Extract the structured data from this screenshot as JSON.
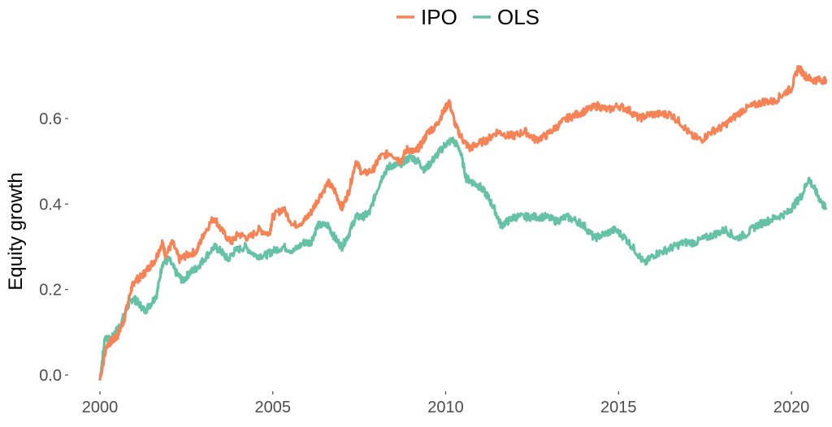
{
  "chart_data": {
    "type": "line",
    "title": "",
    "xlabel": "",
    "ylabel": "Equity growth",
    "xlim": [
      2000,
      2021.1
    ],
    "ylim": [
      -0.02,
      0.76
    ],
    "x_ticks": [
      2000,
      2005,
      2010,
      2015,
      2020
    ],
    "y_ticks": [
      0.0,
      0.2,
      0.4,
      0.6
    ],
    "y_tick_labels": [
      "0.0",
      "0.2",
      "0.4",
      "0.6"
    ],
    "grid": false,
    "legend_position": "top-center",
    "series": [
      {
        "name": "IPO",
        "color": "#F58355",
        "x": [
          2000.0,
          2000.2,
          2000.35,
          2000.5,
          2000.7,
          2000.9,
          2001.0,
          2001.2,
          2001.4,
          2001.6,
          2001.8,
          2001.9,
          2002.1,
          2002.3,
          2002.5,
          2002.8,
          2003.0,
          2003.3,
          2003.5,
          2003.8,
          2004.0,
          2004.3,
          2004.6,
          2004.9,
          2005.0,
          2005.3,
          2005.6,
          2005.9,
          2006.1,
          2006.3,
          2006.6,
          2006.8,
          2007.0,
          2007.2,
          2007.4,
          2007.6,
          2007.9,
          2008.1,
          2008.4,
          2008.7,
          2008.9,
          2009.1,
          2009.3,
          2009.5,
          2009.7,
          2009.9,
          2010.1,
          2010.3,
          2010.5,
          2010.7,
          2010.9,
          2011.2,
          2011.5,
          2011.8,
          2012.0,
          2012.3,
          2012.6,
          2012.9,
          2013.2,
          2013.5,
          2013.8,
          2014.1,
          2014.4,
          2014.7,
          2015.0,
          2015.3,
          2015.6,
          2015.9,
          2016.2,
          2016.5,
          2016.8,
          2017.1,
          2017.4,
          2017.7,
          2018.0,
          2018.3,
          2018.6,
          2018.9,
          2019.2,
          2019.5,
          2019.8,
          2020.0,
          2020.2,
          2020.4,
          2020.6,
          2020.8,
          2021.0
        ],
        "values": [
          -0.01,
          0.07,
          0.08,
          0.09,
          0.13,
          0.2,
          0.22,
          0.23,
          0.25,
          0.27,
          0.31,
          0.28,
          0.31,
          0.27,
          0.28,
          0.29,
          0.33,
          0.37,
          0.34,
          0.31,
          0.33,
          0.32,
          0.34,
          0.33,
          0.37,
          0.39,
          0.35,
          0.36,
          0.38,
          0.41,
          0.45,
          0.43,
          0.39,
          0.43,
          0.5,
          0.47,
          0.48,
          0.51,
          0.52,
          0.5,
          0.53,
          0.52,
          0.54,
          0.57,
          0.58,
          0.61,
          0.64,
          0.58,
          0.55,
          0.53,
          0.54,
          0.55,
          0.57,
          0.56,
          0.56,
          0.57,
          0.55,
          0.56,
          0.58,
          0.6,
          0.61,
          0.62,
          0.63,
          0.62,
          0.63,
          0.62,
          0.6,
          0.61,
          0.61,
          0.61,
          0.59,
          0.56,
          0.55,
          0.57,
          0.58,
          0.6,
          0.62,
          0.63,
          0.64,
          0.64,
          0.66,
          0.67,
          0.72,
          0.7,
          0.69,
          0.69,
          0.69
        ]
      },
      {
        "name": "OLS",
        "color": "#66C2A5",
        "x": [
          2000.0,
          2000.15,
          2000.3,
          2000.45,
          2000.6,
          2000.8,
          2000.95,
          2001.1,
          2001.3,
          2001.5,
          2001.65,
          2001.8,
          2002.0,
          2002.2,
          2002.4,
          2002.6,
          2002.8,
          2003.0,
          2003.3,
          2003.5,
          2003.7,
          2003.9,
          2004.2,
          2004.5,
          2004.8,
          2005.0,
          2005.3,
          2005.6,
          2005.9,
          2006.1,
          2006.3,
          2006.6,
          2006.8,
          2007.0,
          2007.2,
          2007.4,
          2007.6,
          2007.8,
          2008.0,
          2008.2,
          2008.4,
          2008.6,
          2008.8,
          2009.0,
          2009.2,
          2009.4,
          2009.6,
          2009.8,
          2010.0,
          2010.2,
          2010.4,
          2010.6,
          2010.8,
          2011.0,
          2011.2,
          2011.4,
          2011.6,
          2011.8,
          2012.0,
          2012.3,
          2012.6,
          2012.9,
          2013.2,
          2013.5,
          2013.8,
          2014.0,
          2014.3,
          2014.6,
          2014.9,
          2015.2,
          2015.5,
          2015.75,
          2016.0,
          2016.3,
          2016.6,
          2016.9,
          2017.2,
          2017.5,
          2017.8,
          2018.1,
          2018.4,
          2018.7,
          2019.0,
          2019.3,
          2019.6,
          2019.9,
          2020.1,
          2020.3,
          2020.5,
          2020.7,
          2020.9,
          2021.0
        ],
        "values": [
          -0.01,
          0.09,
          0.08,
          0.1,
          0.12,
          0.16,
          0.18,
          0.17,
          0.15,
          0.17,
          0.19,
          0.26,
          0.27,
          0.24,
          0.22,
          0.24,
          0.25,
          0.27,
          0.3,
          0.29,
          0.27,
          0.29,
          0.3,
          0.28,
          0.28,
          0.29,
          0.3,
          0.29,
          0.31,
          0.31,
          0.35,
          0.35,
          0.32,
          0.3,
          0.33,
          0.37,
          0.37,
          0.38,
          0.43,
          0.47,
          0.49,
          0.49,
          0.5,
          0.51,
          0.5,
          0.48,
          0.5,
          0.52,
          0.54,
          0.55,
          0.53,
          0.46,
          0.45,
          0.44,
          0.42,
          0.39,
          0.35,
          0.36,
          0.37,
          0.37,
          0.37,
          0.37,
          0.36,
          0.37,
          0.36,
          0.35,
          0.32,
          0.33,
          0.34,
          0.32,
          0.29,
          0.26,
          0.28,
          0.29,
          0.3,
          0.31,
          0.31,
          0.32,
          0.33,
          0.34,
          0.32,
          0.33,
          0.35,
          0.36,
          0.37,
          0.38,
          0.4,
          0.42,
          0.46,
          0.43,
          0.4,
          0.39
        ]
      }
    ]
  }
}
